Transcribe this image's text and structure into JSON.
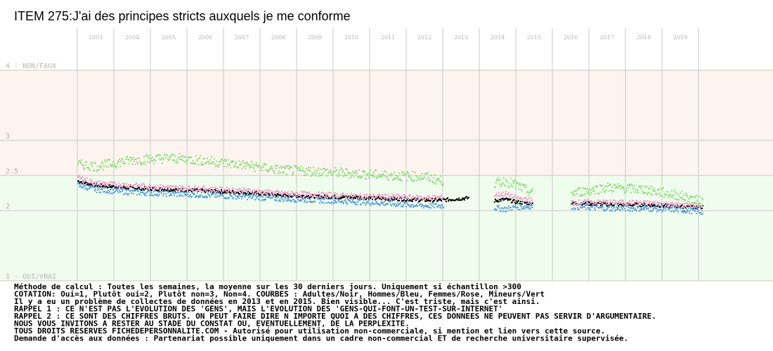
{
  "chart_data": {
    "type": "scatter",
    "title": "ITEM 275:J'ai des principes stricts auxquels je me conforme",
    "x_tick_labels": [
      "2003",
      "2004",
      "2005",
      "2006",
      "2007",
      "2008",
      "2009",
      "2010",
      "2011",
      "2012",
      "2013",
      "2014",
      "2015",
      "2016",
      "2017",
      "2018",
      "2019"
    ],
    "y_tick_labels": [
      {
        "value": 4,
        "label": "4 - NON/FAUX"
      },
      {
        "value": 3,
        "label": "3"
      },
      {
        "value": 2.5,
        "label": "2.5"
      },
      {
        "value": 2,
        "label": "2"
      },
      {
        "value": 1,
        "label": "1 - OUI/VRAI"
      }
    ],
    "ylim": [
      1,
      4
    ],
    "grid": true,
    "background_bands": [
      {
        "from": 2.5,
        "to": 4,
        "color": "#fdf4ef"
      },
      {
        "from": 1,
        "to": 2.5,
        "color": "#f0fdee"
      }
    ],
    "gaps": [
      {
        "from": "2013.2",
        "to": "2013.9"
      },
      {
        "from": "2014.95",
        "to": "2016.0"
      }
    ],
    "series": [
      {
        "name": "Adultes",
        "color": "#000000",
        "segments": [
          {
            "x": [
              2002.5,
              2003,
              2004,
              2005,
              2006,
              2007,
              2008,
              2009,
              2010,
              2011,
              2012,
              2012.5,
              2013.2
            ],
            "y": [
              2.42,
              2.36,
              2.32,
              2.3,
              2.28,
              2.26,
              2.22,
              2.2,
              2.19,
              2.17,
              2.15,
              2.15,
              2.18
            ]
          },
          {
            "x": [
              2013.9,
              2014.2,
              2014.5,
              2014.95
            ],
            "y": [
              2.14,
              2.16,
              2.12,
              2.1
            ]
          },
          {
            "x": [
              2016.0,
              2017,
              2018,
              2019,
              2019.6
            ],
            "y": [
              2.11,
              2.09,
              2.08,
              2.06,
              2.05
            ]
          }
        ]
      },
      {
        "name": "Hommes",
        "color": "#5b9ee0",
        "segments": [
          {
            "x": [
              2002.5,
              2003,
              2004,
              2005,
              2006,
              2007,
              2008,
              2009,
              2010,
              2011,
              2012,
              2012.5
            ],
            "y": [
              2.36,
              2.3,
              2.26,
              2.24,
              2.22,
              2.2,
              2.17,
              2.15,
              2.13,
              2.1,
              2.07,
              2.07
            ]
          },
          {
            "x": [
              2013.9,
              2014.2,
              2014.5,
              2014.95
            ],
            "y": [
              2.04,
              2.02,
              2.05,
              2.06
            ]
          },
          {
            "x": [
              2016.0,
              2017,
              2018,
              2019,
              2019.6
            ],
            "y": [
              2.06,
              2.03,
              2.03,
              2.01,
              1.98
            ]
          }
        ]
      },
      {
        "name": "Femmes",
        "color": "#f0a0c8",
        "segments": [
          {
            "x": [
              2002.5,
              2003,
              2004,
              2005,
              2006,
              2007,
              2008,
              2009,
              2010,
              2011,
              2012,
              2012.5
            ],
            "y": [
              2.47,
              2.39,
              2.36,
              2.33,
              2.31,
              2.29,
              2.25,
              2.23,
              2.21,
              2.2,
              2.18,
              2.19
            ]
          },
          {
            "x": [
              2013.9,
              2014.2,
              2014.5,
              2014.95
            ],
            "y": [
              2.22,
              2.24,
              2.18,
              2.14
            ]
          },
          {
            "x": [
              2016.0,
              2017,
              2018,
              2019,
              2019.6
            ],
            "y": [
              2.12,
              2.12,
              2.11,
              2.08,
              2.07
            ]
          }
        ]
      },
      {
        "name": "Mineurs",
        "color": "#88e078",
        "segments": [
          {
            "x": [
              2002.5,
              2003,
              2004,
              2005,
              2006,
              2007,
              2008,
              2009,
              2010,
              2011,
              2012,
              2012.5
            ],
            "y": [
              2.66,
              2.63,
              2.72,
              2.75,
              2.71,
              2.65,
              2.58,
              2.56,
              2.53,
              2.5,
              2.48,
              2.42
            ]
          },
          {
            "x": [
              2013.9,
              2014.2,
              2014.5,
              2014.95
            ],
            "y": [
              2.38,
              2.42,
              2.36,
              2.24
            ]
          },
          {
            "x": [
              2016.0,
              2017,
              2018,
              2019,
              2019.6
            ],
            "y": [
              2.25,
              2.33,
              2.3,
              2.21,
              2.12
            ]
          }
        ]
      }
    ]
  },
  "footnotes": [
    "Méthode de calcul : Toutes les semaines, la moyenne sur les 30 derniers jours. Uniquement si échantillon >300",
    "COTATION: Oui=1, Plutôt oui=2, Plutôt non=3, Non=4. COURBES : Adultes/Noir, Hommes/Bleu, Femmes/Rose, Mineurs/Vert",
    "Il y a eu un problème de collectes de données en 2013 et en 2015. Bien visible... C'est triste, mais c'est ainsi.",
    "RAPPEL 1 : CE N'EST PAS L'EVOLUTION DES 'GENS', MAIS L'EVOLUTION DES 'GENS-QUI-FONT-UN-TEST-SUR-INTERNET'",
    "RAPPEL 2 : CE SONT DES CHIFFRES BRUTS. ON PEUT FAIRE DIRE N IMPORTE QUOI A DES CHIFFRES, CES DONNEES NE PEUVENT PAS SERVIR D'ARGUMENTAIRE.",
    "           NOUS VOUS INVITONS A RESTER AU STADE DU CONSTAT OU, EVENTUELLEMENT,  DE LA PERPLEXITE.",
    "TOUS DROITS RESERVES FICHEDEPERSONNALITE.COM - Autorisé pour utilisation non-commerciale, si mention et lien vers cette source.",
    "Demande d'accès aux données : Partenariat possible uniquement dans un cadre non-commercial ET de recherche universitaire supervisée."
  ]
}
